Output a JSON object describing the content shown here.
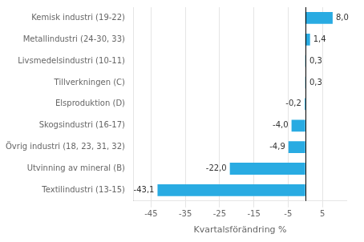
{
  "chart_data": {
    "type": "bar",
    "orientation": "horizontal",
    "categories": [
      "Textilindustri (13-15)",
      "Utvinning av mineral (B)",
      "Övrig industri (18, 23, 31, 32)",
      "Skogsindustri (16-17)",
      "Elsproduktion (D)",
      "Tillverkningen (C)",
      "Livsmedelsindustri (10-11)",
      "Metallindustri (24-30, 33)",
      "Kemisk industri (19-22)"
    ],
    "values": [
      -43.1,
      -22.0,
      -4.9,
      -4.0,
      -0.2,
      0.3,
      0.3,
      1.4,
      8.0
    ],
    "value_labels": [
      "-43,1",
      "-22,0",
      "-4,9",
      "-4,0",
      "-0,2",
      "0,3",
      "0,3",
      "1,4",
      "8,0"
    ],
    "data_labels": true,
    "color": "#29abe2",
    "xlabel": "Kvartalsförändring %",
    "xlim": [
      -50,
      12
    ],
    "xticks": [
      -45,
      -35,
      -25,
      -15,
      -5,
      5
    ],
    "grid": true
  }
}
